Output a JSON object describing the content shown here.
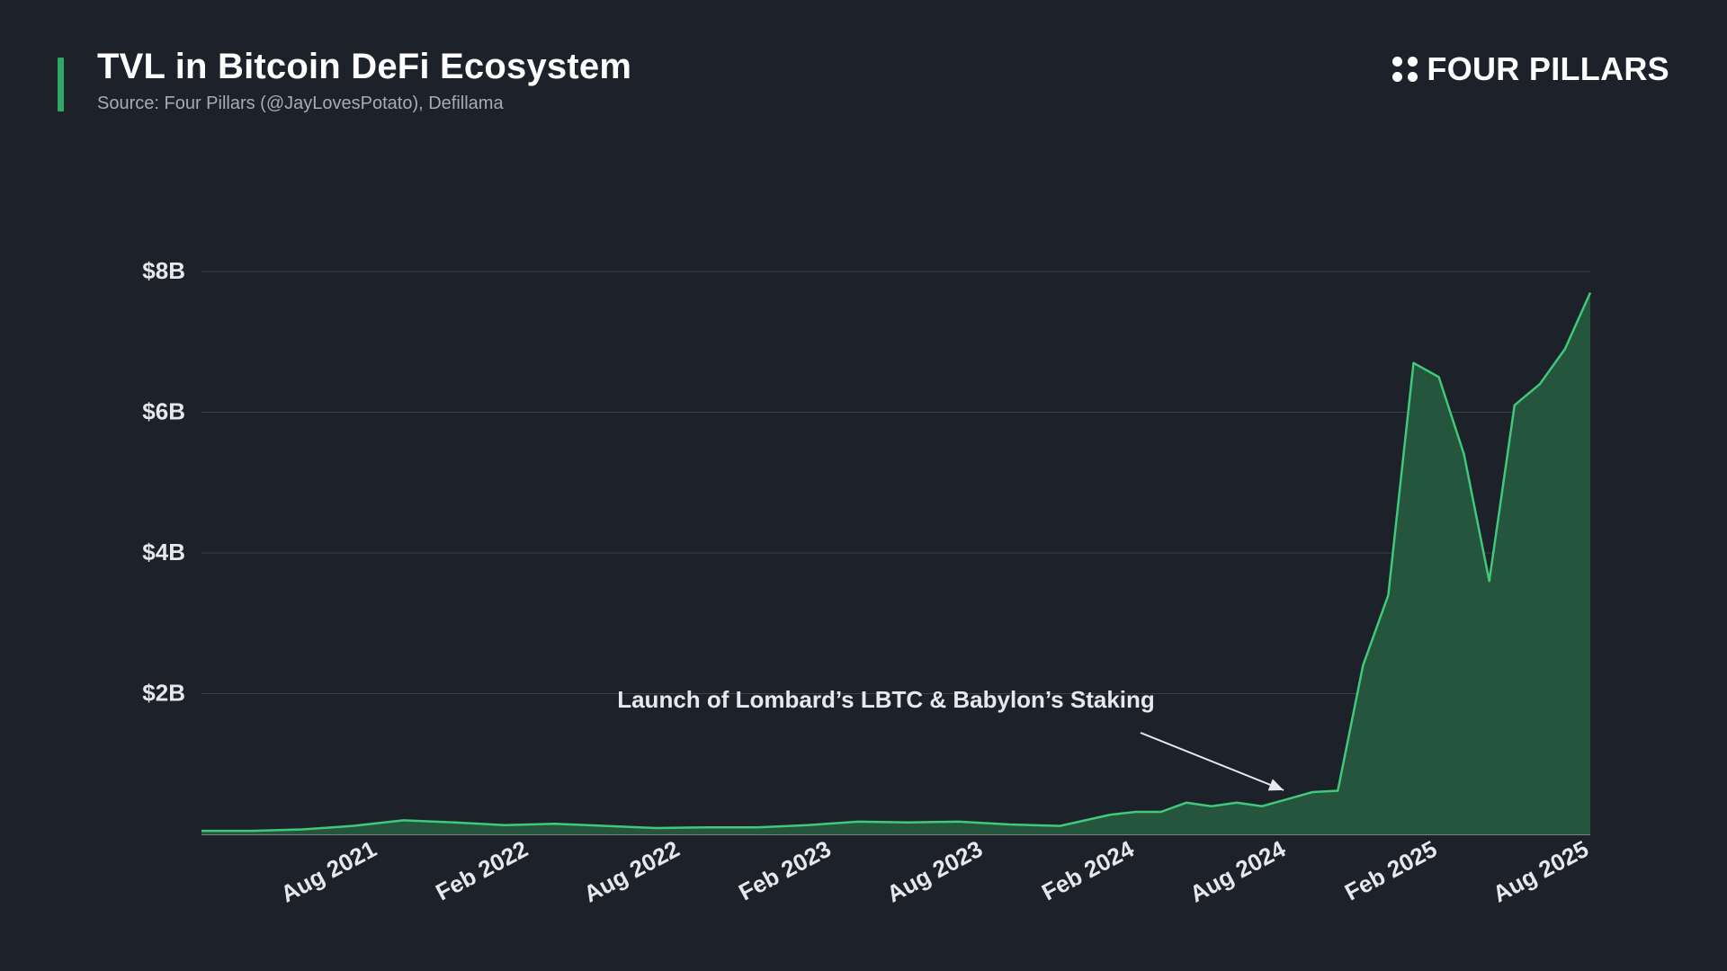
{
  "header": {
    "title": "TVL in Bitcoin DeFi Ecosystem",
    "subtitle": "Source: Four Pillars (@JayLovesPotato), Defillama",
    "brand": "FOUR PILLARS"
  },
  "colors": {
    "background": "#1d212a",
    "accent": "#2fa866",
    "line": "#3fc97a",
    "area": "#25553d",
    "grid": "#3b404a"
  },
  "chart_data": {
    "type": "area",
    "title": "TVL in Bitcoin DeFi Ecosystem",
    "xlabel": "",
    "ylabel": "",
    "ylim": [
      0,
      8
    ],
    "y_unit": "USD billions",
    "y_ticks": [
      2,
      4,
      6,
      8
    ],
    "y_tick_labels": [
      "$2B",
      "$4B",
      "$6B",
      "$8B"
    ],
    "x_range": [
      "2021-01",
      "2025-08"
    ],
    "x_tick_labels": [
      "Aug 2021",
      "Feb 2022",
      "Aug 2022",
      "Feb 2023",
      "Aug 2023",
      "Feb 2024",
      "Aug 2024",
      "Feb 2025",
      "Aug 2025"
    ],
    "x_tick_positions": [
      "2021-08",
      "2022-02",
      "2022-08",
      "2023-02",
      "2023-08",
      "2024-02",
      "2024-08",
      "2025-02",
      "2025-08"
    ],
    "grid": true,
    "series": [
      {
        "name": "",
        "x": [
          "2021-01",
          "2021-03",
          "2021-05",
          "2021-07",
          "2021-09",
          "2021-11",
          "2022-01",
          "2022-03",
          "2022-05",
          "2022-07",
          "2022-09",
          "2022-11",
          "2023-01",
          "2023-03",
          "2023-05",
          "2023-07",
          "2023-09",
          "2023-11",
          "2024-01",
          "2024-02",
          "2024-03",
          "2024-04",
          "2024-05",
          "2024-06",
          "2024-07",
          "2024-08",
          "2024-09",
          "2024-10",
          "2024-11",
          "2024-12",
          "2025-01",
          "2025-02",
          "2025-03",
          "2025-04",
          "2025-05",
          "2025-06",
          "2025-07",
          "2025-08"
        ],
        "values": [
          0.05,
          0.05,
          0.07,
          0.12,
          0.2,
          0.17,
          0.13,
          0.15,
          0.12,
          0.09,
          0.1,
          0.1,
          0.13,
          0.18,
          0.17,
          0.18,
          0.14,
          0.12,
          0.28,
          0.32,
          0.32,
          0.45,
          0.4,
          0.45,
          0.4,
          0.5,
          0.6,
          0.62,
          2.4,
          3.4,
          6.7,
          6.5,
          5.4,
          3.6,
          6.1,
          6.4,
          6.9,
          7.7
        ]
      }
    ],
    "annotations": [
      {
        "text": "Launch of Lombard’s LBTC & Babylon’s Staking",
        "x": "2024-08",
        "y": 0.5
      }
    ]
  }
}
